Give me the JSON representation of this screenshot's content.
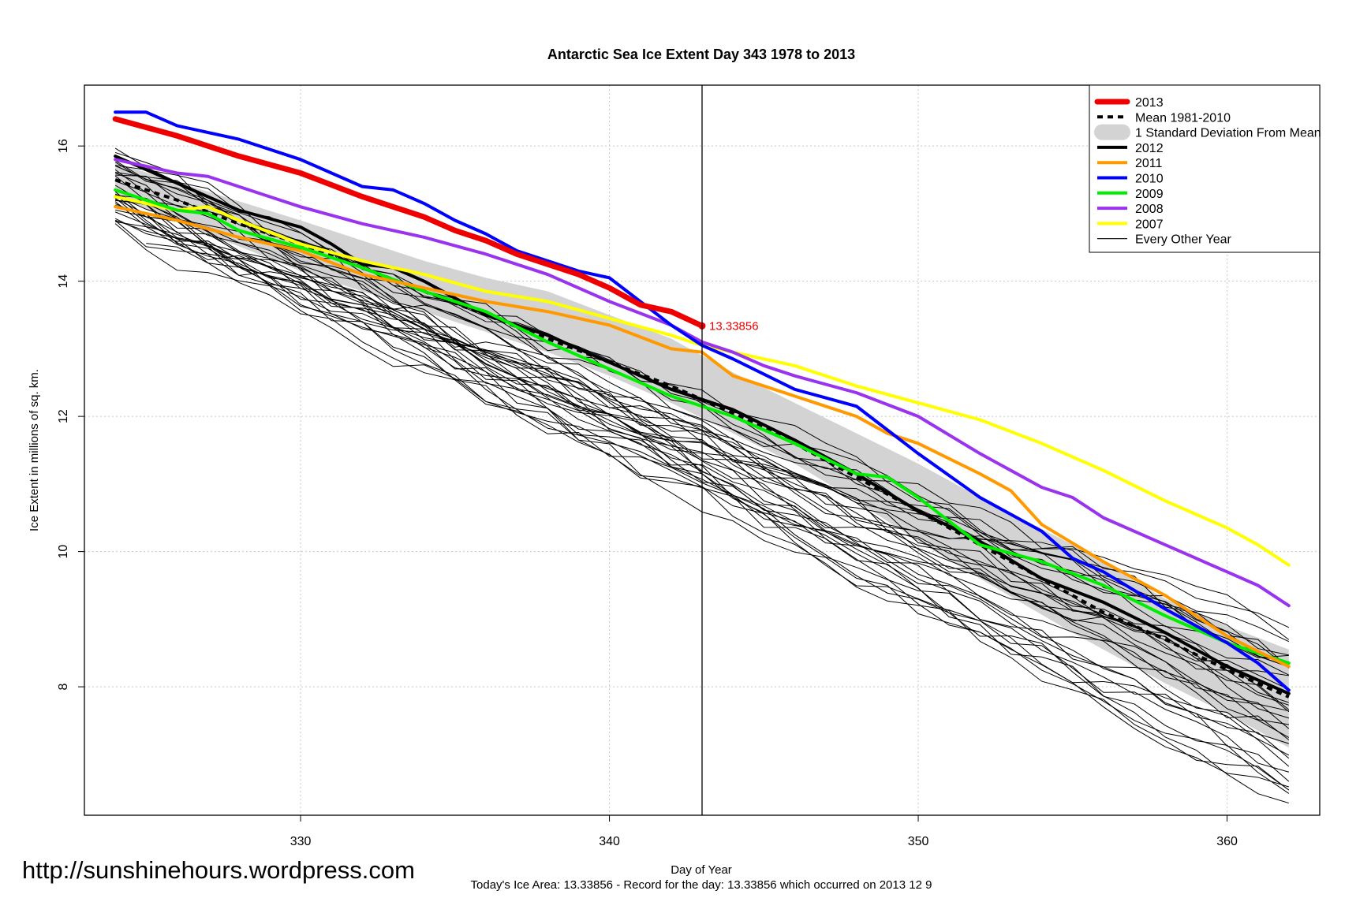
{
  "chart_data": {
    "type": "line",
    "title": "Antarctic Sea Ice Extent Day 343 1978 to 2013",
    "xlabel": "Day of Year",
    "ylabel": "Ice Extent in millions of sq. km.",
    "xlim": [
      323,
      363
    ],
    "ylim": [
      6.1,
      16.9
    ],
    "x_ticks": [
      330,
      340,
      350,
      360
    ],
    "y_ticks": [
      8,
      10,
      12,
      14,
      16
    ],
    "grid": true,
    "legend_position": "top-right",
    "vertical_marker_day": 343,
    "point_label": {
      "x": 343,
      "y": 13.33856,
      "text": "13.33856",
      "color": "#ee0000"
    },
    "footer": "Today's Ice Area: 13.33856  - Record for the day: 13.33856 which occurred on 2013 12 9",
    "legend": [
      {
        "label": "2013",
        "color": "#ee0000",
        "style": "thick"
      },
      {
        "label": "Mean 1981-2010",
        "color": "#000000",
        "style": "dashed"
      },
      {
        "label": "1 Standard Deviation From Mean",
        "color": "#d3d3d3",
        "style": "band"
      },
      {
        "label": "2012",
        "color": "#000000",
        "style": "line"
      },
      {
        "label": "2011",
        "color": "#ff9900",
        "style": "line"
      },
      {
        "label": "2010",
        "color": "#0000ff",
        "style": "line"
      },
      {
        "label": "2009",
        "color": "#00ee00",
        "style": "line"
      },
      {
        "label": "2008",
        "color": "#9933ee",
        "style": "line"
      },
      {
        "label": "2007",
        "color": "#ffff00",
        "style": "line"
      },
      {
        "label": "Every Other Year",
        "color": "#000000",
        "style": "thin"
      }
    ],
    "band": {
      "x": [
        324,
        330,
        334,
        336,
        338,
        340,
        342,
        344,
        346,
        348,
        350,
        352,
        355,
        358,
        360,
        362
      ],
      "upper": [
        15.75,
        14.9,
        14.3,
        14.05,
        13.85,
        13.5,
        13.15,
        12.65,
        12.2,
        11.75,
        11.3,
        10.8,
        10.1,
        9.3,
        8.9,
        8.55
      ],
      "lower": [
        15.25,
        14.15,
        13.55,
        13.25,
        12.95,
        12.6,
        12.2,
        11.75,
        11.3,
        10.75,
        10.15,
        9.6,
        8.8,
        8.05,
        7.6,
        7.1
      ]
    },
    "series": [
      {
        "name": "Mean 1981-2010",
        "color": "#000000",
        "width": 4,
        "dash": "7,6",
        "x": [
          324,
          326,
          328,
          330,
          332,
          334,
          336,
          338,
          340,
          342,
          344,
          346,
          348,
          350,
          352,
          354,
          356,
          358,
          360,
          362
        ],
        "y": [
          15.5,
          15.2,
          14.85,
          14.55,
          14.2,
          13.85,
          13.5,
          13.15,
          12.8,
          12.45,
          12.05,
          11.6,
          11.1,
          10.6,
          10.1,
          9.6,
          9.1,
          8.7,
          8.25,
          7.85
        ]
      },
      {
        "name": "2012",
        "color": "#000000",
        "width": 4,
        "x": [
          324,
          326,
          328,
          330,
          331,
          332,
          333,
          334,
          336,
          338,
          340,
          342,
          344,
          346,
          348,
          350,
          352,
          354,
          356,
          358,
          360,
          362
        ],
        "y": [
          15.85,
          15.45,
          15.05,
          14.8,
          14.55,
          14.25,
          14.2,
          14.0,
          13.5,
          13.2,
          12.8,
          12.4,
          12.1,
          11.65,
          11.15,
          10.6,
          10.15,
          9.6,
          9.25,
          8.8,
          8.3,
          7.9
        ]
      },
      {
        "name": "2007",
        "color": "#ffff00",
        "width": 4,
        "x": [
          324,
          326,
          327,
          328,
          330,
          332,
          334,
          336,
          338,
          340,
          342,
          343,
          344,
          346,
          348,
          350,
          352,
          354,
          356,
          358,
          360,
          361,
          362
        ],
        "y": [
          15.25,
          15.05,
          15.1,
          14.9,
          14.55,
          14.3,
          14.1,
          13.85,
          13.7,
          13.45,
          13.2,
          13.05,
          12.95,
          12.75,
          12.45,
          12.2,
          11.95,
          11.6,
          11.2,
          10.75,
          10.35,
          10.1,
          9.8
        ]
      },
      {
        "name": "2008",
        "color": "#9933ee",
        "width": 4,
        "x": [
          324,
          325,
          326,
          327,
          328,
          330,
          332,
          334,
          336,
          338,
          340,
          342,
          343,
          344,
          345,
          346,
          348,
          350,
          352,
          354,
          355,
          356,
          358,
          360,
          361,
          362
        ],
        "y": [
          15.8,
          15.7,
          15.6,
          15.55,
          15.4,
          15.1,
          14.85,
          14.65,
          14.4,
          14.1,
          13.7,
          13.35,
          13.1,
          12.95,
          12.75,
          12.6,
          12.35,
          12.0,
          11.45,
          10.95,
          10.8,
          10.5,
          10.1,
          9.7,
          9.5,
          9.2
        ]
      },
      {
        "name": "2009",
        "color": "#00ee00",
        "width": 4,
        "x": [
          324,
          326,
          327,
          328,
          330,
          332,
          334,
          336,
          338,
          340,
          342,
          344,
          346,
          348,
          349,
          350,
          352,
          354,
          356,
          358,
          360,
          362
        ],
        "y": [
          15.35,
          15.05,
          15.0,
          14.75,
          14.5,
          14.2,
          13.85,
          13.55,
          13.1,
          12.7,
          12.3,
          12.0,
          11.6,
          11.15,
          11.1,
          10.8,
          10.1,
          9.85,
          9.5,
          9.05,
          8.65,
          8.35
        ]
      },
      {
        "name": "2011",
        "color": "#ff9900",
        "width": 4,
        "x": [
          324,
          326,
          328,
          330,
          332,
          334,
          336,
          338,
          340,
          342,
          343,
          344,
          346,
          348,
          349,
          350,
          352,
          353,
          354,
          356,
          358,
          360,
          362
        ],
        "y": [
          15.1,
          14.9,
          14.65,
          14.45,
          14.1,
          13.9,
          13.7,
          13.55,
          13.35,
          13.0,
          12.95,
          12.6,
          12.3,
          12.0,
          11.75,
          11.6,
          11.15,
          10.9,
          10.4,
          9.85,
          9.35,
          8.75,
          8.3
        ]
      },
      {
        "name": "2010",
        "color": "#0000ff",
        "width": 4,
        "x": [
          324,
          325,
          326,
          328,
          330,
          332,
          333,
          334,
          335,
          336,
          337,
          338,
          339,
          340,
          341,
          342,
          343,
          344,
          346,
          348,
          350,
          352,
          354,
          355,
          356,
          358,
          360,
          361,
          362
        ],
        "y": [
          16.5,
          16.5,
          16.3,
          16.1,
          15.8,
          15.4,
          15.35,
          15.15,
          14.9,
          14.7,
          14.45,
          14.3,
          14.15,
          14.05,
          13.7,
          13.35,
          13.05,
          12.85,
          12.4,
          12.15,
          11.45,
          10.8,
          10.3,
          9.9,
          9.7,
          9.15,
          8.65,
          8.35,
          7.95
        ]
      },
      {
        "name": "2013",
        "color": "#ee0000",
        "width": 7,
        "x": [
          324,
          326,
          328,
          330,
          332,
          334,
          335,
          336,
          337,
          338,
          339,
          340,
          341,
          342,
          343
        ],
        "y": [
          16.4,
          16.15,
          15.85,
          15.6,
          15.25,
          14.95,
          14.75,
          14.6,
          14.4,
          14.25,
          14.1,
          13.9,
          13.65,
          13.55,
          13.33856
        ]
      }
    ]
  }
}
